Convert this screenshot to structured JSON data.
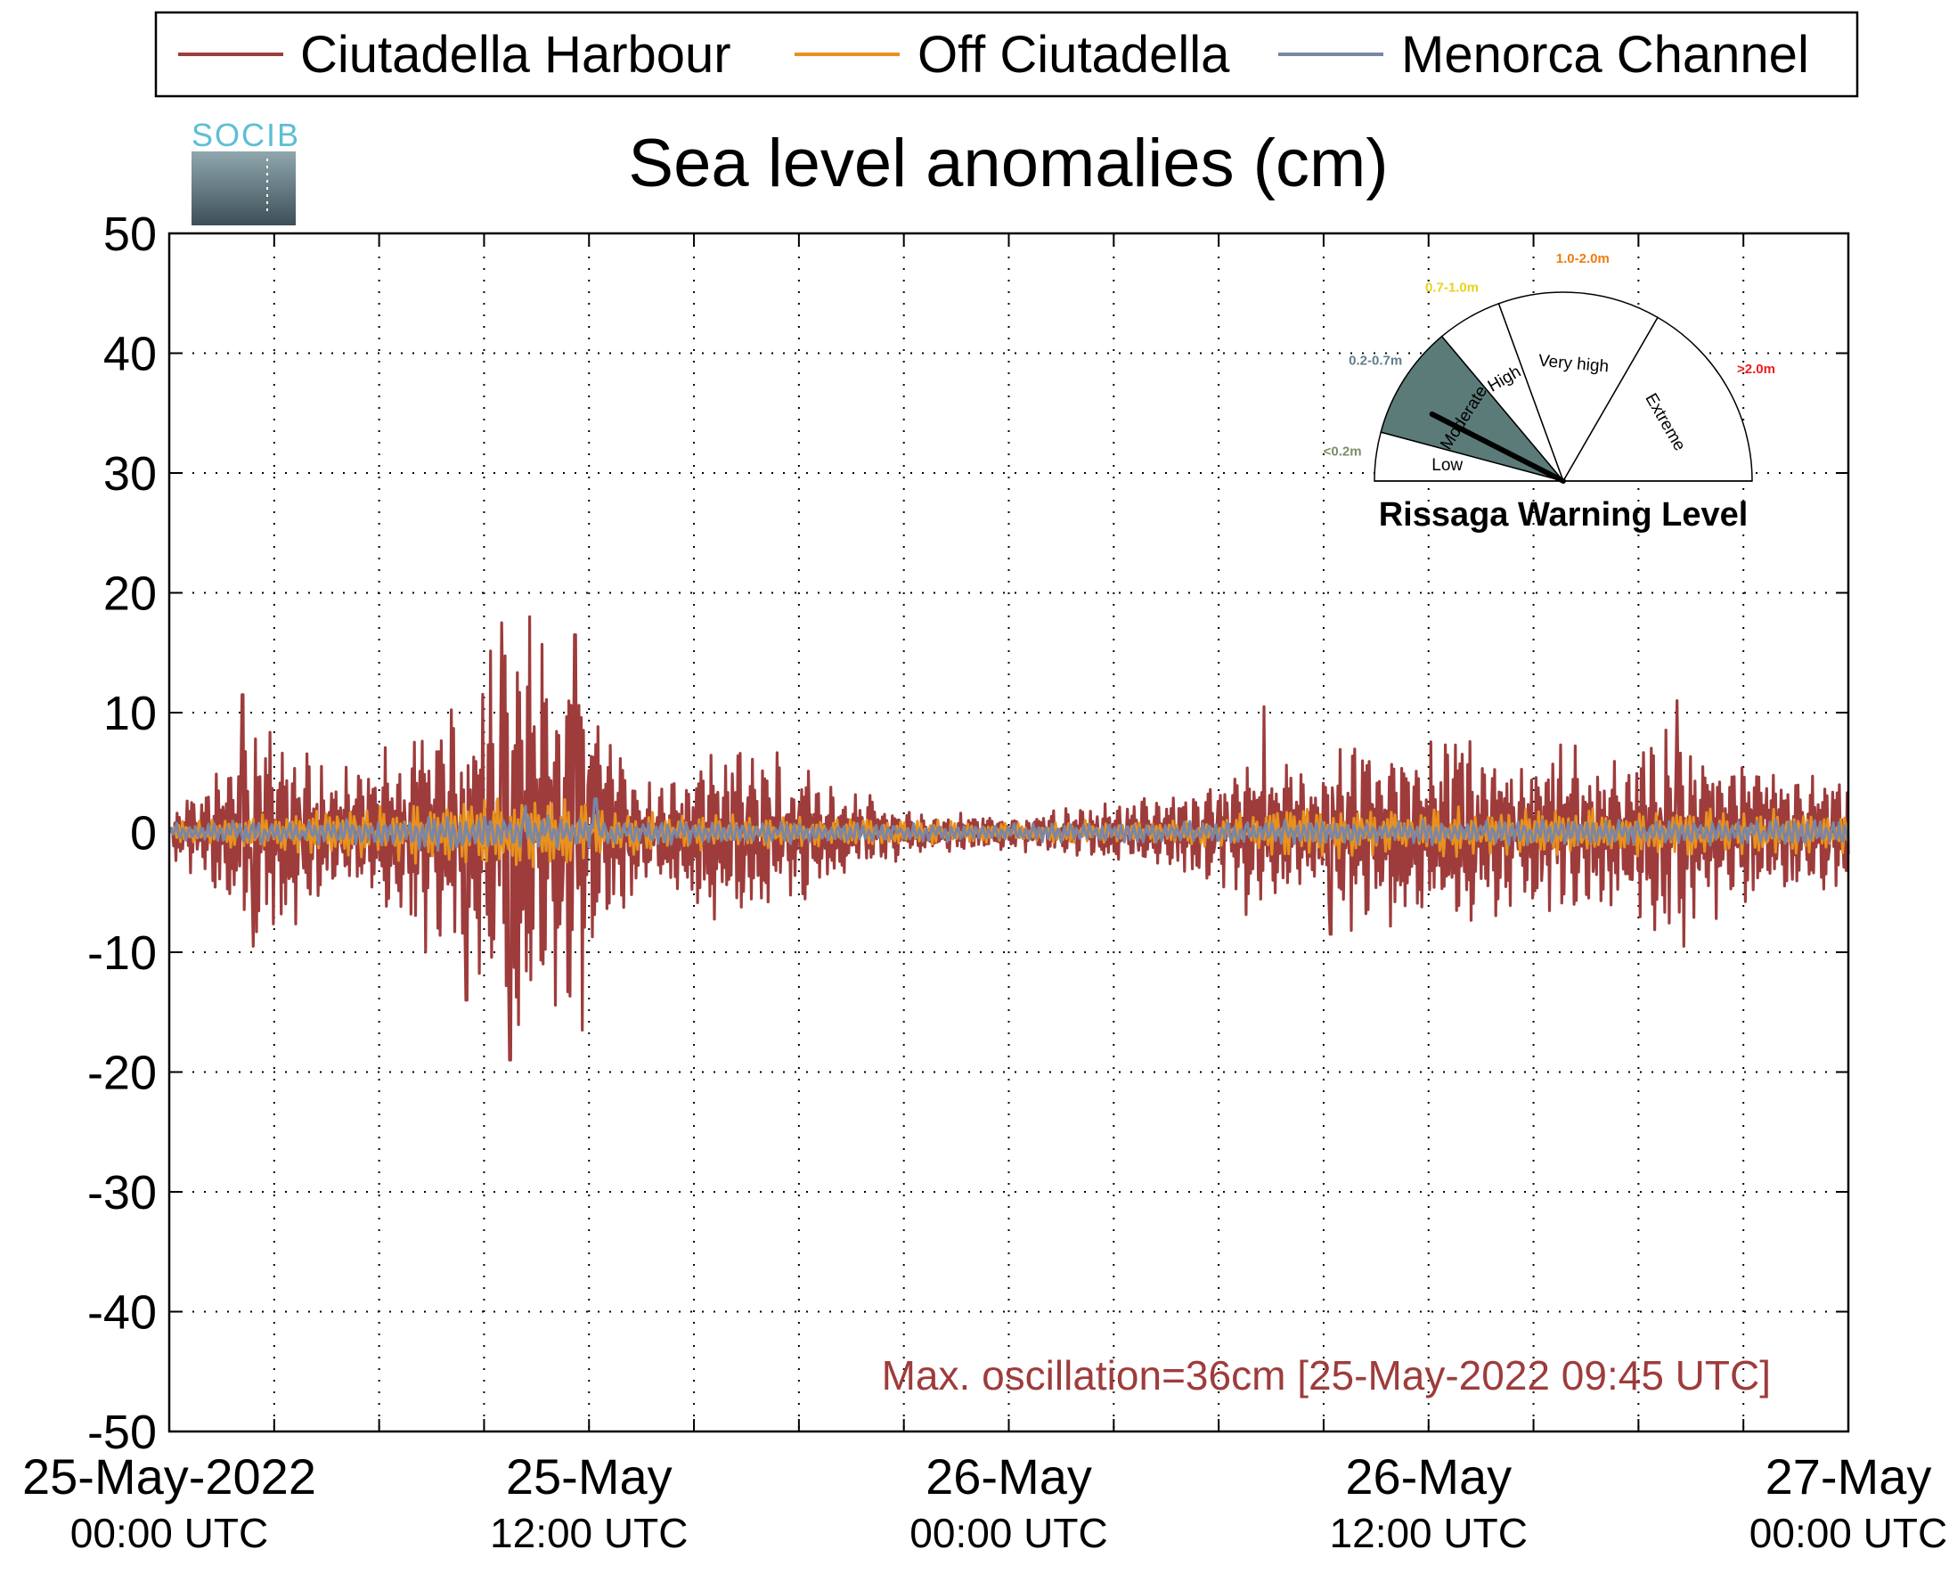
{
  "chart_data": {
    "type": "line",
    "title": "Sea level anomalies (cm)",
    "ylim": [
      -50,
      50
    ],
    "yticks": [
      50,
      40,
      30,
      20,
      10,
      0,
      -10,
      -20,
      -30,
      -40,
      -50
    ],
    "y_tick_labels": [
      "50",
      "40",
      "30",
      "20",
      "10",
      "0",
      "-10",
      "-20",
      "-30",
      "-40",
      "-50"
    ],
    "x_range_hours": [
      0,
      48
    ],
    "x_minor_tick_hours": [
      3,
      6,
      9,
      12,
      15,
      18,
      21,
      24,
      27,
      30,
      33,
      36,
      39,
      42,
      45
    ],
    "x_tick_labels": [
      {
        "hour": 0,
        "line1": "25-May-2022",
        "line2": "00:00 UTC"
      },
      {
        "hour": 12,
        "line1": "25-May",
        "line2": "12:00 UTC"
      },
      {
        "hour": 24,
        "line1": "26-May",
        "line2": "00:00 UTC"
      },
      {
        "hour": 36,
        "line1": "26-May",
        "line2": "12:00 UTC"
      },
      {
        "hour": 48,
        "line1": "27-May",
        "line2": "00:00 UTC"
      }
    ],
    "grid": true,
    "legend_position": "top",
    "annotation": "Max. oscillation=36cm [25-May-2022 09:45 UTC]",
    "series": [
      {
        "name": "Ciutadella Harbour",
        "color": "#9e3c3c",
        "envelope": [
          {
            "hour": 0,
            "amp": 2
          },
          {
            "hour": 1,
            "amp": 4
          },
          {
            "hour": 2,
            "amp": 8
          },
          {
            "hour": 3,
            "amp": 10
          },
          {
            "hour": 4,
            "amp": 7
          },
          {
            "hour": 5,
            "amp": 5
          },
          {
            "hour": 6,
            "amp": 7
          },
          {
            "hour": 7,
            "amp": 9
          },
          {
            "hour": 8,
            "amp": 10
          },
          {
            "hour": 9,
            "amp": 13
          },
          {
            "hour": 10,
            "amp": 17
          },
          {
            "hour": 11,
            "amp": 16
          },
          {
            "hour": 12,
            "amp": 12
          },
          {
            "hour": 13,
            "amp": 6
          },
          {
            "hour": 14,
            "amp": 4
          },
          {
            "hour": 15,
            "amp": 7
          },
          {
            "hour": 16,
            "amp": 8
          },
          {
            "hour": 17,
            "amp": 7
          },
          {
            "hour": 18,
            "amp": 6
          },
          {
            "hour": 19,
            "amp": 4
          },
          {
            "hour": 20,
            "amp": 3
          },
          {
            "hour": 21,
            "amp": 2
          },
          {
            "hour": 22,
            "amp": 1.5
          },
          {
            "hour": 24,
            "amp": 1.5
          },
          {
            "hour": 26,
            "amp": 2
          },
          {
            "hour": 28,
            "amp": 3
          },
          {
            "hour": 30,
            "amp": 4
          },
          {
            "hour": 31,
            "amp": 7
          },
          {
            "hour": 32,
            "amp": 7
          },
          {
            "hour": 33,
            "amp": 6
          },
          {
            "hour": 34,
            "amp": 8
          },
          {
            "hour": 35,
            "amp": 8
          },
          {
            "hour": 36,
            "amp": 7
          },
          {
            "hour": 37,
            "amp": 8
          },
          {
            "hour": 38,
            "amp": 6
          },
          {
            "hour": 39,
            "amp": 6
          },
          {
            "hour": 40,
            "amp": 7
          },
          {
            "hour": 41,
            "amp": 6
          },
          {
            "hour": 42,
            "amp": 7
          },
          {
            "hour": 43,
            "amp": 9
          },
          {
            "hour": 44,
            "amp": 7
          },
          {
            "hour": 45,
            "amp": 6
          },
          {
            "hour": 46,
            "amp": 5
          },
          {
            "hour": 47,
            "amp": 5
          },
          {
            "hour": 48,
            "amp": 5
          }
        ],
        "peaks": [
          {
            "hour": 2.1,
            "value": 11.5
          },
          {
            "hour": 2.4,
            "value": -9.5
          },
          {
            "hour": 8.5,
            "value": -14
          },
          {
            "hour": 9.5,
            "value": 17.5
          },
          {
            "hour": 9.75,
            "value": -19
          },
          {
            "hour": 10.3,
            "value": 18
          },
          {
            "hour": 11.6,
            "value": 16.5
          },
          {
            "hour": 11.8,
            "value": -16.5
          },
          {
            "hour": 31.3,
            "value": 10.5
          },
          {
            "hour": 33.2,
            "value": -8.5
          },
          {
            "hour": 43.1,
            "value": 11
          },
          {
            "hour": 43.3,
            "value": -9.5
          }
        ]
      },
      {
        "name": "Off Ciutadella",
        "color": "#e8911e",
        "envelope": [
          {
            "hour": 0,
            "amp": 1
          },
          {
            "hour": 2,
            "amp": 1.5
          },
          {
            "hour": 5,
            "amp": 2
          },
          {
            "hour": 8,
            "amp": 3
          },
          {
            "hour": 10,
            "amp": 3.5
          },
          {
            "hour": 12,
            "amp": 2.5
          },
          {
            "hour": 14,
            "amp": 1.5
          },
          {
            "hour": 20,
            "amp": 1.2
          },
          {
            "hour": 24,
            "amp": 0.8
          },
          {
            "hour": 30,
            "amp": 1.2
          },
          {
            "hour": 32,
            "amp": 2
          },
          {
            "hour": 36,
            "amp": 2
          },
          {
            "hour": 40,
            "amp": 2.2
          },
          {
            "hour": 44,
            "amp": 2
          },
          {
            "hour": 48,
            "amp": 1.8
          }
        ],
        "peaks": []
      },
      {
        "name": "Menorca Channel",
        "color": "#7a86a6",
        "envelope": [
          {
            "hour": 0,
            "amp": 0.8
          },
          {
            "hour": 6,
            "amp": 1.2
          },
          {
            "hour": 10,
            "amp": 1.6
          },
          {
            "hour": 14,
            "amp": 1
          },
          {
            "hour": 24,
            "amp": 0.7
          },
          {
            "hour": 32,
            "amp": 1
          },
          {
            "hour": 48,
            "amp": 1.1
          }
        ],
        "peaks": [
          {
            "hour": 12.2,
            "value": 2.8
          },
          {
            "hour": 10.2,
            "value": 2.2
          }
        ]
      }
    ]
  },
  "logo": {
    "text": "SOCIB",
    "color": "#5bbfd6"
  },
  "gauge": {
    "title": "Rissaga Warning Level",
    "current_level": "Moderate",
    "current_fill": "#5b7b79",
    "needle_angle_deg": 27,
    "sectors": [
      {
        "label": "Low",
        "range": "<0.2m",
        "range_color": "#7a9065",
        "start": 0,
        "end": 15
      },
      {
        "label": "Moderate",
        "range": "0.2-0.7m",
        "range_color": "#5f7f8c",
        "start": 15,
        "end": 50
      },
      {
        "label": "High",
        "range": "0.7-1.0m",
        "range_color": "#e8d21e",
        "start": 50,
        "end": 70
      },
      {
        "label": "Very high",
        "range": "1.0-2.0m",
        "range_color": "#f07b10",
        "start": 70,
        "end": 120
      },
      {
        "label": "Extreme",
        "range": ">2.0m",
        "range_color": "#ee1c1c",
        "start": 120,
        "end": 180
      }
    ]
  }
}
